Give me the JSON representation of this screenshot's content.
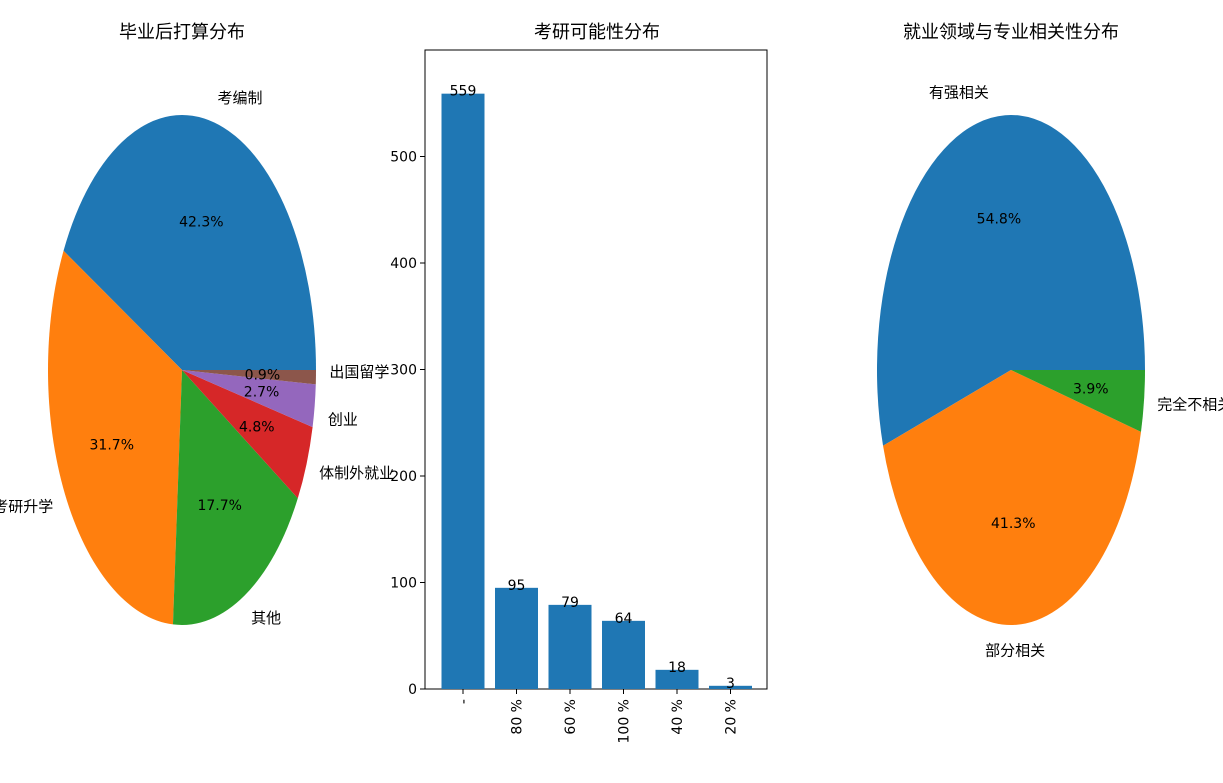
{
  "chart_data": [
    {
      "type": "pie",
      "title": "毕业后打算分布",
      "labels": [
        "考编制",
        "考研升学",
        "其他",
        "体制外就业",
        "创业",
        "出国留学"
      ],
      "values": [
        42.3,
        31.7,
        17.7,
        4.8,
        2.7,
        0.9
      ],
      "pct_labels": [
        "42.3%",
        "31.7%",
        "17.7%",
        "4.8%",
        "2.7%",
        "0.9%"
      ],
      "colors": [
        "#1f77b4",
        "#ff7f0e",
        "#2ca02c",
        "#d62728",
        "#9467bd",
        "#8c564b"
      ]
    },
    {
      "type": "bar",
      "title": "考研可能性分布",
      "categories": [
        "-",
        "80 %",
        "60 %",
        "100 %",
        "40 %",
        "20 %"
      ],
      "values": [
        559,
        95,
        79,
        64,
        18,
        3
      ],
      "ylim": [
        0,
        600
      ],
      "yticks": [
        0,
        100,
        200,
        300,
        400,
        500
      ],
      "color": "#1f77b4",
      "xlabel": "",
      "ylabel": ""
    },
    {
      "type": "pie",
      "title": "就业领域与专业相关性分布",
      "labels": [
        "有强相关",
        "部分相关",
        "完全不相关"
      ],
      "values": [
        54.8,
        41.3,
        3.9
      ],
      "pct_labels": [
        "54.8%",
        "41.3%",
        "3.9%"
      ],
      "colors": [
        "#1f77b4",
        "#ff7f0e",
        "#2ca02c"
      ]
    }
  ]
}
